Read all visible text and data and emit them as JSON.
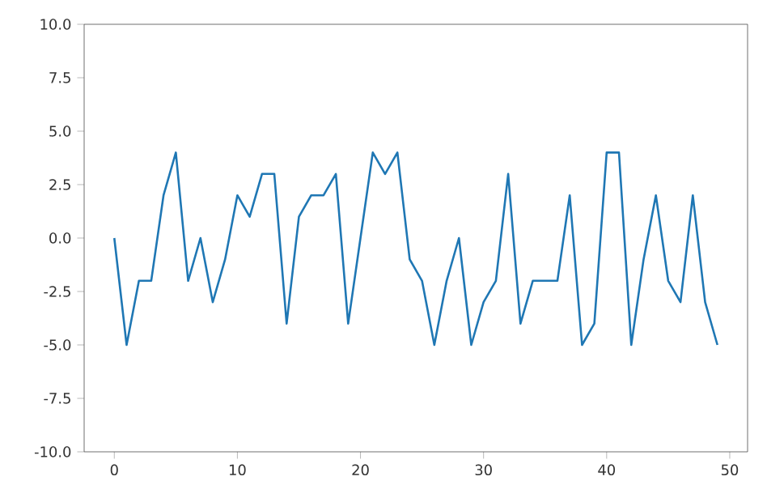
{
  "chart_data": {
    "type": "line",
    "x": [
      0,
      1,
      2,
      3,
      4,
      5,
      6,
      7,
      8,
      9,
      10,
      11,
      12,
      13,
      14,
      15,
      16,
      17,
      18,
      19,
      20,
      21,
      22,
      23,
      24,
      25,
      26,
      27,
      28,
      29,
      30,
      31,
      32,
      33,
      34,
      35,
      36,
      37,
      38,
      39,
      40,
      41,
      42,
      43,
      44,
      45,
      46,
      47,
      48,
      49
    ],
    "series": [
      {
        "color": "#1f77b4",
        "values": [
          0,
          -5,
          -2,
          -2,
          2,
          4,
          -2,
          0,
          -3,
          -1,
          2,
          1,
          3,
          3,
          -4,
          1,
          2,
          2,
          3,
          -4,
          0,
          4,
          3,
          4,
          -1,
          -2,
          -5,
          -2,
          0,
          -5,
          -3,
          -2,
          3,
          -4,
          -2,
          -2,
          -2,
          2,
          -5,
          -4,
          4,
          4,
          -5,
          -1,
          2,
          -2,
          -3,
          2,
          -3,
          -5
        ]
      }
    ],
    "xlim": [
      -2.45,
      51.45
    ],
    "ylim": [
      -10,
      10
    ],
    "xticks": [
      0,
      10,
      20,
      30,
      40,
      50
    ],
    "yticks": [
      {
        "value": -10,
        "label": "-10.0"
      },
      {
        "value": -7.5,
        "label": "-7.5"
      },
      {
        "value": -5,
        "label": "-5.0"
      },
      {
        "value": -2.5,
        "label": "-2.5"
      },
      {
        "value": 0,
        "label": "0.0"
      },
      {
        "value": 2.5,
        "label": "2.5"
      },
      {
        "value": 5,
        "label": "5.0"
      },
      {
        "value": 7.5,
        "label": "7.5"
      },
      {
        "value": 10,
        "label": "10.0"
      }
    ],
    "line_style": "solid"
  }
}
